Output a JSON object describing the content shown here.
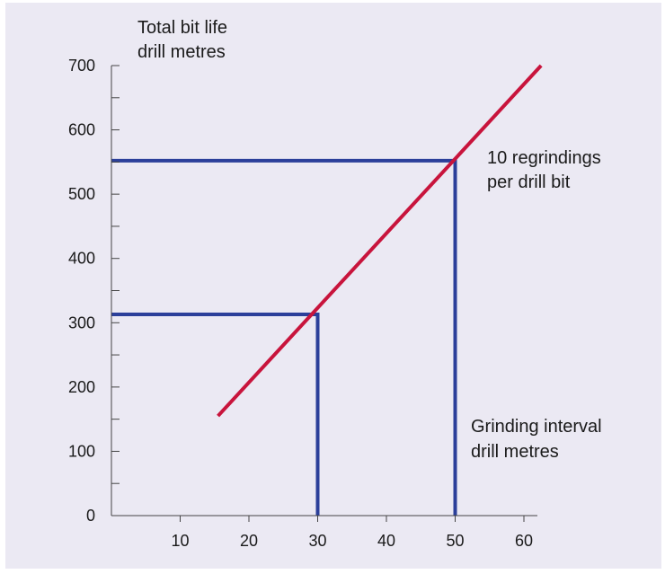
{
  "chart_data": {
    "type": "line",
    "ylabel_lines": [
      "Total bit life",
      "drill metres"
    ],
    "xlabel_lines": [
      "Grinding interval",
      "drill metres"
    ],
    "annotation_lines": [
      "10 regrindings",
      "per drill bit"
    ],
    "xlim": [
      0,
      62
    ],
    "ylim": [
      0,
      700
    ],
    "x_ticks": [
      10,
      20,
      30,
      40,
      50,
      60
    ],
    "y_ticks": [
      0,
      100,
      200,
      300,
      400,
      500,
      600,
      700
    ],
    "y_minor_step": 50,
    "series": [
      {
        "color": "#c8143c",
        "x": [
          15.5,
          62.5
        ],
        "y": [
          155,
          700
        ]
      }
    ],
    "reference_lines": [
      {
        "x": 30,
        "y": 313,
        "color": "#2b3f9a"
      },
      {
        "x": 50,
        "y": 552,
        "color": "#2b3f9a"
      }
    ]
  }
}
